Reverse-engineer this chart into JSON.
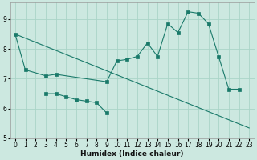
{
  "xlabel": "Humidex (Indice chaleur)",
  "bg_color": "#cce8e0",
  "line_color": "#1a7a6a",
  "grid_color": "#aad4c8",
  "xlim": [
    -0.5,
    23.5
  ],
  "ylim": [
    5,
    9.55
  ],
  "yticks": [
    5,
    6,
    7,
    8,
    9
  ],
  "xticks": [
    0,
    1,
    2,
    3,
    4,
    5,
    6,
    7,
    8,
    9,
    10,
    11,
    12,
    13,
    14,
    15,
    16,
    17,
    18,
    19,
    20,
    21,
    22,
    23
  ],
  "series1_x": [
    0,
    1,
    3,
    4,
    9,
    10,
    11,
    12,
    13,
    14,
    15,
    16,
    17,
    18,
    19,
    20,
    21,
    22
  ],
  "series1_y": [
    8.5,
    7.3,
    7.1,
    7.15,
    6.9,
    7.6,
    7.65,
    7.75,
    8.2,
    7.75,
    8.85,
    8.55,
    9.25,
    9.2,
    8.85,
    7.75,
    6.65,
    6.65
  ],
  "series2_x": [
    3,
    4,
    5,
    6,
    7,
    8,
    9
  ],
  "series2_y": [
    6.5,
    6.5,
    6.4,
    6.3,
    6.25,
    6.2,
    5.85
  ],
  "series3_x": [
    0,
    23
  ],
  "series3_y": [
    8.5,
    5.35
  ]
}
